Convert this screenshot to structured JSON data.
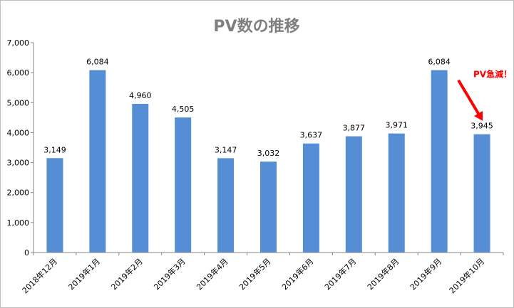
{
  "chart_data": {
    "type": "bar",
    "title": "PV数の推移",
    "categories": [
      "2018年12月",
      "2019年1月",
      "2019年2月",
      "2019年3月",
      "2019年4月",
      "2019年5月",
      "2019年6月",
      "2019年7月",
      "2019年8月",
      "2019年9月",
      "2019年10月"
    ],
    "values": [
      3149,
      6084,
      4960,
      4505,
      3147,
      3032,
      3637,
      3877,
      3971,
      6084,
      3945
    ],
    "data_labels": [
      "3,149",
      "6,084",
      "4,960",
      "4,505",
      "3,147",
      "3,032",
      "3,637",
      "3,877",
      "3,971",
      "6,084",
      "3,945"
    ],
    "ylim": [
      0,
      7000
    ],
    "yticks": [
      0,
      1000,
      2000,
      3000,
      4000,
      5000,
      6000,
      7000
    ],
    "ytick_labels": [
      "0",
      "1,000",
      "2,000",
      "3,000",
      "4,000",
      "5,000",
      "6,000",
      "7,000"
    ],
    "grid": false,
    "legend": "none",
    "annotation": {
      "text": "PV急減！",
      "target_category": "2019年10月",
      "color": "#ff0000"
    },
    "colors": {
      "bar": "#558ed5",
      "title": "#7f7f7f",
      "axis": "#868686",
      "annotation": "#ff0000"
    }
  }
}
